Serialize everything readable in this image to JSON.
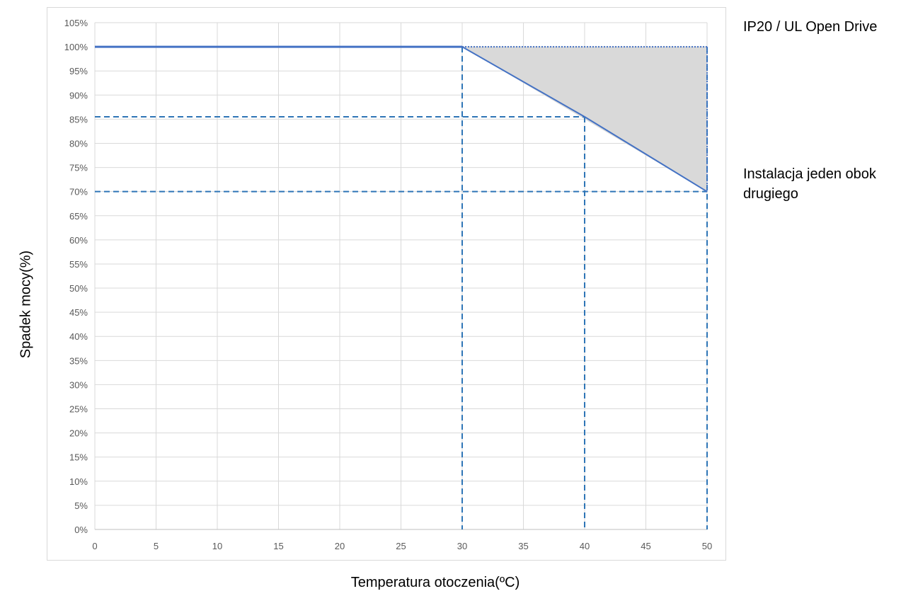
{
  "chart_data": {
    "type": "line",
    "title": "",
    "xlabel": "Temperatura otoczenia(ºC)",
    "ylabel": "Spadek mocy(%)",
    "xlim": [
      0,
      50
    ],
    "ylim": [
      0,
      105
    ],
    "x_ticks": [
      "0",
      "5",
      "10",
      "15",
      "20",
      "25",
      "30",
      "35",
      "40",
      "45",
      "50"
    ],
    "y_ticks": [
      "0%",
      "5%",
      "10%",
      "15%",
      "20%",
      "25%",
      "30%",
      "35%",
      "40%",
      "45%",
      "50%",
      "55%",
      "60%",
      "65%",
      "70%",
      "75%",
      "80%",
      "85%",
      "90%",
      "95%",
      "100%",
      "105%"
    ],
    "grid": true,
    "series": [
      {
        "name": "IP20 / UL Open Drive",
        "x": [
          0,
          30,
          30,
          50
        ],
        "y": [
          100,
          100,
          100,
          100
        ],
        "style": "solid-then-dotted"
      },
      {
        "name": "Instalacja jeden obok drugiego",
        "x": [
          0,
          30,
          40,
          50
        ],
        "y": [
          100,
          100,
          85.5,
          70
        ],
        "style": "solid"
      }
    ],
    "shaded_region": {
      "x": [
        30,
        50,
        50
      ],
      "y": [
        100,
        100,
        70
      ],
      "color": "#d9d9d9"
    },
    "reference_lines": {
      "horizontal": [
        {
          "y": 85.5,
          "x_end": 40
        },
        {
          "y": 70,
          "x_end": 50
        }
      ],
      "vertical": [
        {
          "x": 30,
          "y_end": 100
        },
        {
          "x": 40,
          "y_end": 85.5
        },
        {
          "x": 50,
          "y_end": 100
        }
      ]
    },
    "colors": {
      "line": "#4472c4",
      "reference": "#2e75b6",
      "grid": "#d9d9d9",
      "shade": "#d9d9d9"
    }
  },
  "labels": {
    "note_top": "IP20 / UL Open Drive",
    "note_side": "Instalacja jeden obok drugiego"
  }
}
